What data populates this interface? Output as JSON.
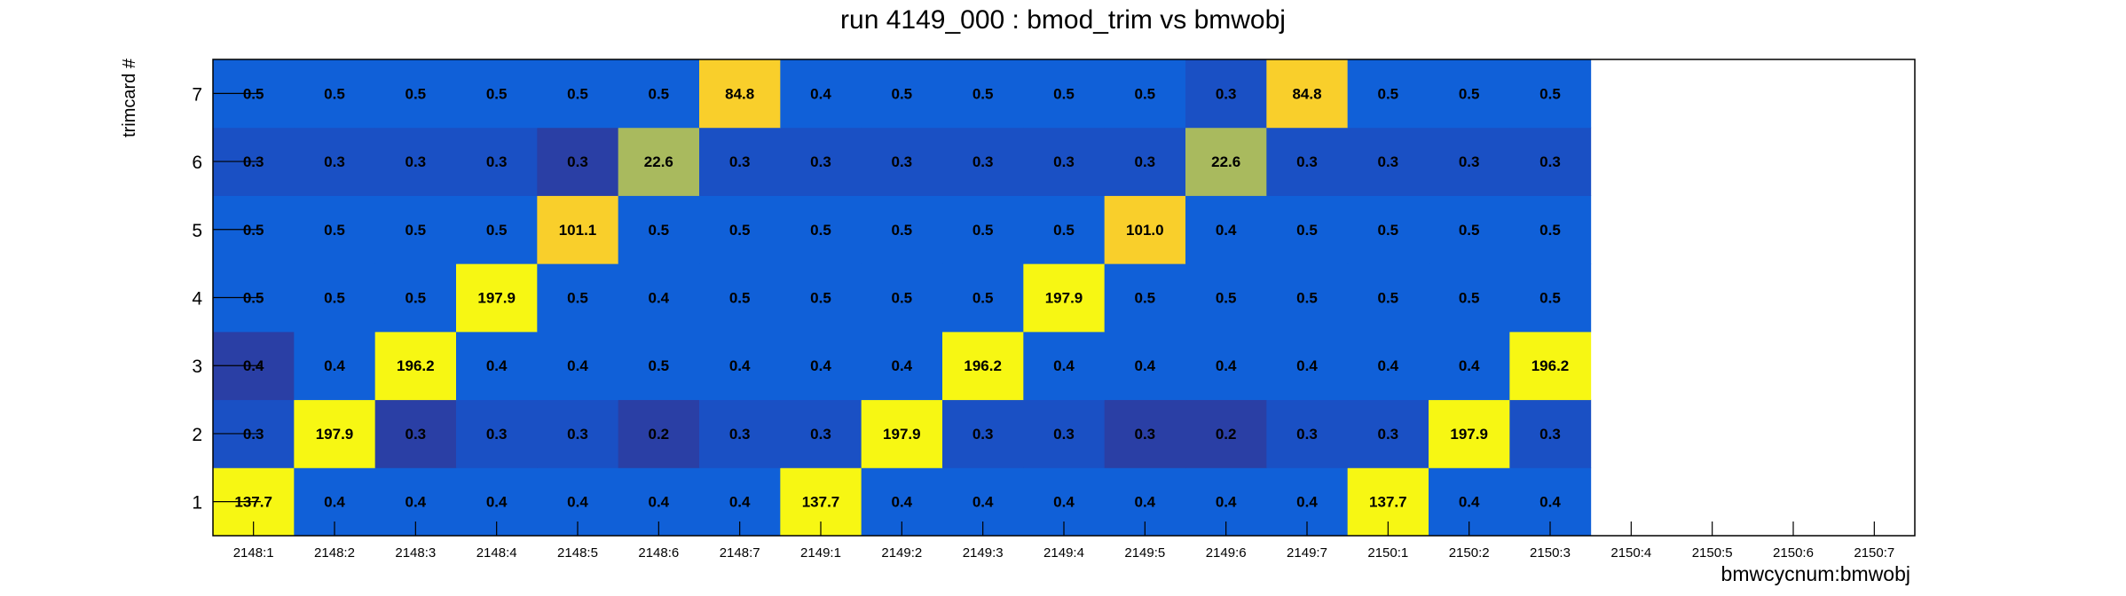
{
  "chart_data": {
    "type": "heatmap",
    "title": "run 4149_000 : bmod_trim vs bmwobj",
    "xlabel": "bmwcycnum:bmwobj",
    "ylabel": "trimcard #",
    "x_categories": [
      "2148:1",
      "2148:2",
      "2148:3",
      "2148:4",
      "2148:5",
      "2148:6",
      "2148:7",
      "2149:1",
      "2149:2",
      "2149:3",
      "2149:4",
      "2149:5",
      "2149:6",
      "2149:7",
      "2150:1",
      "2150:2",
      "2150:3",
      "2150:4",
      "2150:5",
      "2150:6",
      "2150:7"
    ],
    "y_categories": [
      "1",
      "2",
      "3",
      "4",
      "5",
      "6",
      "7"
    ],
    "filled_columns": 17,
    "values": [
      [
        "137.7",
        "0.4",
        "0.4",
        "0.4",
        "0.4",
        "0.4",
        "0.4",
        "137.7",
        "0.4",
        "0.4",
        "0.4",
        "0.4",
        "0.4",
        "0.4",
        "137.7",
        "0.4",
        "0.4"
      ],
      [
        "0.3",
        "197.9",
        "0.3",
        "0.3",
        "0.3",
        "0.2",
        "0.3",
        "0.3",
        "197.9",
        "0.3",
        "0.3",
        "0.3",
        "0.2",
        "0.3",
        "0.3",
        "197.9",
        "0.3"
      ],
      [
        "0.4",
        "0.4",
        "196.2",
        "0.4",
        "0.4",
        "0.5",
        "0.4",
        "0.4",
        "0.4",
        "196.2",
        "0.4",
        "0.4",
        "0.4",
        "0.4",
        "0.4",
        "0.4",
        "196.2"
      ],
      [
        "0.5",
        "0.5",
        "0.5",
        "197.9",
        "0.5",
        "0.4",
        "0.5",
        "0.5",
        "0.5",
        "0.5",
        "197.9",
        "0.5",
        "0.5",
        "0.5",
        "0.5",
        "0.5",
        "0.5"
      ],
      [
        "0.5",
        "0.5",
        "0.5",
        "0.5",
        "101.1",
        "0.5",
        "0.5",
        "0.5",
        "0.5",
        "0.5",
        "0.5",
        "101.0",
        "0.4",
        "0.5",
        "0.5",
        "0.5",
        "0.5"
      ],
      [
        "0.3",
        "0.3",
        "0.3",
        "0.3",
        "0.3",
        "22.6",
        "0.3",
        "0.3",
        "0.3",
        "0.3",
        "0.3",
        "0.3",
        "22.6",
        "0.3",
        "0.3",
        "0.3",
        "0.3"
      ],
      [
        "0.5",
        "0.5",
        "0.5",
        "0.5",
        "0.5",
        "0.5",
        "84.8",
        "0.4",
        "0.5",
        "0.5",
        "0.5",
        "0.5",
        "0.3",
        "84.8",
        "0.5",
        "0.5",
        "0.5"
      ]
    ],
    "colors": {
      "high": "#f7f713",
      "mid_high": "#f9cf2b",
      "mid": "#a9ba5e",
      "low": "#1060d8",
      "lower": "#1a50c4",
      "lowest": "#2a3fa5",
      "frame": "#000000",
      "background": "#ffffff"
    },
    "grid": false
  }
}
